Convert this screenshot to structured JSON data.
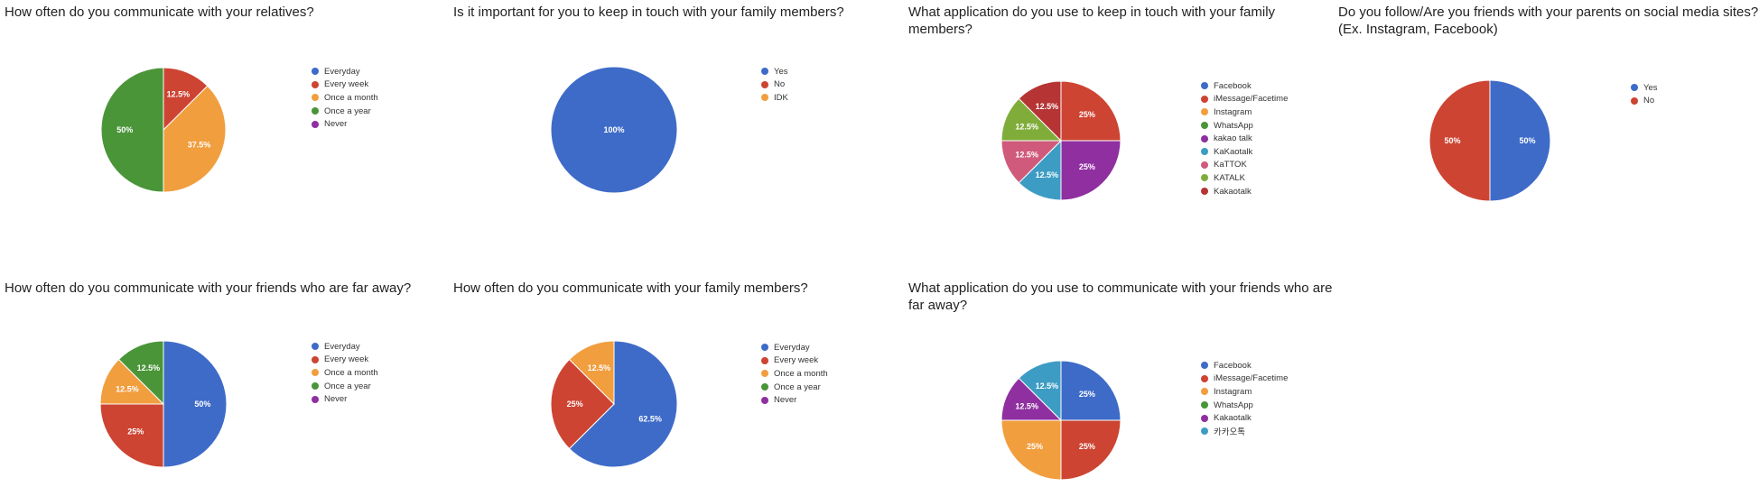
{
  "colors": {
    "blue": "#3e6bc8",
    "red": "#cd4432",
    "orange": "#f19e3f",
    "green": "#4a9538",
    "purple": "#8f2fa0",
    "teal": "#3d9cc4",
    "pink": "#cf5a7b",
    "lime": "#80ad3a",
    "darkred": "#b63434"
  },
  "chart_data": [
    {
      "type": "pie",
      "title": "How often do you communicate with your relatives?",
      "categories": [
        "Everyday",
        "Every week",
        "Once a month",
        "Once a year",
        "Never"
      ],
      "values": [
        0,
        12.5,
        37.5,
        50,
        0
      ],
      "labels": [
        "",
        "12.5%",
        "37.5%",
        "50%",
        ""
      ],
      "colors": [
        "#3e6bc8",
        "#cd4432",
        "#f19e3f",
        "#4a9538",
        "#8f2fa0"
      ],
      "legend": "right"
    },
    {
      "type": "pie",
      "title": "Is it important for you to keep in touch with your family members?",
      "categories": [
        "Yes",
        "No",
        "IDK"
      ],
      "values": [
        100,
        0,
        0
      ],
      "labels": [
        "100%",
        "",
        ""
      ],
      "colors": [
        "#3e6bc8",
        "#cd4432",
        "#f19e3f"
      ],
      "legend": "right"
    },
    {
      "type": "pie",
      "title": "What application do you use to keep in touch with your family members?",
      "categories": [
        "Facebook",
        "iMessage/Facetime",
        "Instagram",
        "WhatsApp",
        "kakao talk",
        "KaKaotalk",
        "KaTTOK",
        "KATALK",
        "Kakaotalk"
      ],
      "values": [
        0,
        25,
        0,
        0,
        25,
        12.5,
        12.5,
        12.5,
        12.5
      ],
      "labels": [
        "",
        "25%",
        "",
        "",
        "25%",
        "12.5%",
        "12.5%",
        "12.5%",
        "12.5%"
      ],
      "colors": [
        "#3e6bc8",
        "#cd4432",
        "#f19e3f",
        "#4a9538",
        "#8f2fa0",
        "#3d9cc4",
        "#cf5a7b",
        "#80ad3a",
        "#b63434"
      ],
      "legend": "right"
    },
    {
      "type": "pie",
      "title": "Do you follow/Are you friends with your parents on social media sites? (Ex. Instagram, Facebook)",
      "categories": [
        "Yes",
        "No"
      ],
      "values": [
        50,
        50
      ],
      "labels": [
        "50%",
        "50%"
      ],
      "colors": [
        "#3e6bc8",
        "#cd4432"
      ],
      "legend": "right"
    },
    {
      "type": "pie",
      "title": "How often do you communicate with your friends who are far away?",
      "categories": [
        "Everyday",
        "Every week",
        "Once a month",
        "Once a year",
        "Never"
      ],
      "values": [
        50,
        25,
        12.5,
        12.5,
        0
      ],
      "labels": [
        "50%",
        "25%",
        "12.5%",
        "12.5%",
        ""
      ],
      "colors": [
        "#3e6bc8",
        "#cd4432",
        "#f19e3f",
        "#4a9538",
        "#8f2fa0"
      ],
      "legend": "right"
    },
    {
      "type": "pie",
      "title": "How often do you communicate with your family members?",
      "categories": [
        "Everyday",
        "Every week",
        "Once a month",
        "Once a year",
        "Never"
      ],
      "values": [
        62.5,
        25,
        12.5,
        0,
        0
      ],
      "labels": [
        "62.5%",
        "25%",
        "12.5%",
        "",
        ""
      ],
      "colors": [
        "#3e6bc8",
        "#cd4432",
        "#f19e3f",
        "#4a9538",
        "#8f2fa0"
      ],
      "legend": "right"
    },
    {
      "type": "pie",
      "title": "What application do you use to communicate with your friends who are far away?",
      "categories": [
        "Facebook",
        "iMessage/Facetime",
        "Instagram",
        "WhatsApp",
        "Kakaotalk",
        "카카오톡"
      ],
      "values": [
        25,
        25,
        25,
        0,
        12.5,
        12.5
      ],
      "labels": [
        "25%",
        "25%",
        "25%",
        "",
        "12.5%",
        "12.5%"
      ],
      "colors": [
        "#3e6bc8",
        "#cd4432",
        "#f19e3f",
        "#4a9538",
        "#8f2fa0",
        "#3d9cc4"
      ],
      "legend": "right"
    }
  ]
}
